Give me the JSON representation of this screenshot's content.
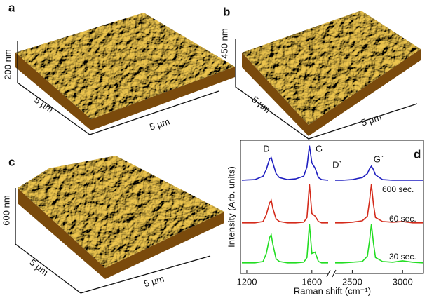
{
  "panels": [
    {
      "label": "a",
      "height_label": "200 nm",
      "x_label": "5 µm",
      "y_label": "5 µm"
    },
    {
      "label": "b",
      "height_label": "450 nm",
      "x_label": "5 µm",
      "y_label": "5 µm"
    },
    {
      "label": "c",
      "height_label": "600 nm",
      "x_label": "5 µm",
      "y_label": "5 µm"
    }
  ],
  "chart_data": {
    "type": "line",
    "panel_label": "d",
    "x_label": "Raman shift (cm⁻¹)",
    "y_label": "Intensity (Arb. units)",
    "ylim": [
      0,
      10
    ],
    "segments": [
      {
        "xlim": [
          1170,
          1700
        ],
        "xticks": [
          1200,
          1600
        ],
        "x": [
          1170,
          1200,
          1250,
          1300,
          1320,
          1340,
          1350,
          1360,
          1380,
          1400,
          1450,
          1500,
          1550,
          1570,
          1585,
          1600,
          1620,
          1640,
          1660,
          1700
        ]
      },
      {
        "xlim": [
          2330,
          3200
        ],
        "xticks": [
          2500,
          3000
        ],
        "x": [
          2330,
          2400,
          2500,
          2600,
          2650,
          2670,
          2690,
          2710,
          2730,
          2800,
          2900,
          3000,
          3100,
          3200
        ]
      }
    ],
    "series": [
      {
        "name": "600 sec.",
        "color": "#1f1fc0",
        "values": [
          [
            7.0,
            7.02,
            7.05,
            7.3,
            7.8,
            8.6,
            8.7,
            8.3,
            7.5,
            7.2,
            7.05,
            7.1,
            7.3,
            8.0,
            9.6,
            8.3,
            7.9,
            7.2,
            7.05,
            7.0
          ],
          [
            7.0,
            7.0,
            7.05,
            7.2,
            7.5,
            7.85,
            8.05,
            7.8,
            7.4,
            7.05,
            7.0,
            7.0,
            7.0,
            7.0
          ]
        ]
      },
      {
        "name": "60 sec.",
        "color": "#d42a1a",
        "values": [
          [
            3.8,
            3.8,
            3.8,
            3.9,
            4.4,
            5.3,
            5.5,
            4.9,
            4.1,
            3.9,
            3.8,
            3.8,
            3.85,
            4.2,
            6.7,
            4.5,
            4.3,
            3.9,
            3.8,
            3.8
          ],
          [
            3.8,
            3.8,
            3.85,
            3.95,
            4.3,
            5.4,
            6.7,
            5.2,
            4.2,
            3.9,
            3.85,
            3.9,
            3.8,
            3.8
          ]
        ]
      },
      {
        "name": "30 sec.",
        "color": "#22dd22",
        "values": [
          [
            0.8,
            0.8,
            0.8,
            0.9,
            1.5,
            2.7,
            2.9,
            2.2,
            1.1,
            0.9,
            0.8,
            0.8,
            0.85,
            1.2,
            3.7,
            1.5,
            1.6,
            0.9,
            0.8,
            0.8
          ],
          [
            0.8,
            0.8,
            0.85,
            0.9,
            1.3,
            2.4,
            3.7,
            2.3,
            1.2,
            0.9,
            0.85,
            0.95,
            0.85,
            0.8
          ]
        ]
      }
    ],
    "annotations": [
      "D",
      "G",
      "D`",
      "G`"
    ]
  }
}
